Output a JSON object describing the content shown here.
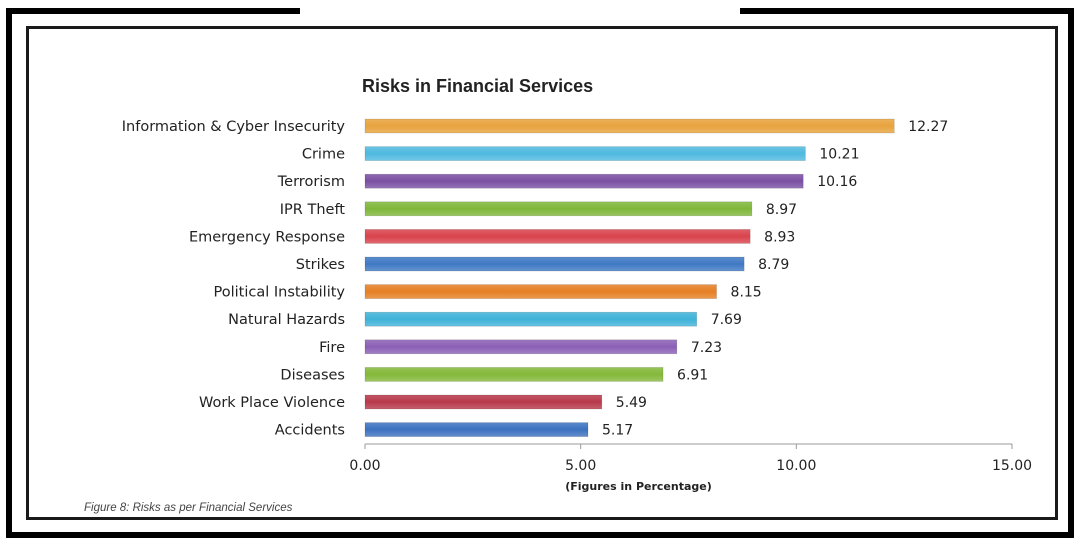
{
  "chart_data": {
    "type": "bar",
    "orientation": "horizontal",
    "title": "Risks in Financial Services",
    "xlabel": "(Figures in Percentage)",
    "ylabel": "",
    "xlim": [
      0,
      15
    ],
    "ticks": [
      "0.00",
      "5.00",
      "10.00",
      "15.00"
    ],
    "tick_values": [
      0,
      5,
      10,
      15
    ],
    "grid": false,
    "legend": "none",
    "categories": [
      "Information & Cyber Insecurity",
      "Crime",
      "Terrorism",
      "IPR Theft",
      "Emergency Response",
      "Strikes",
      "Political Instability",
      "Natural Hazards",
      "Fire",
      "Diseases",
      "Work Place Violence",
      "Accidents"
    ],
    "values": [
      12.27,
      10.21,
      10.16,
      8.97,
      8.93,
      8.79,
      8.15,
      7.69,
      7.23,
      6.91,
      5.49,
      5.17
    ],
    "value_labels": [
      "12.27",
      "10.21",
      "10.16",
      "8.97",
      "8.93",
      "8.79",
      "8.15",
      "7.69",
      "7.23",
      "6.91",
      "5.49",
      "5.17"
    ],
    "colors": [
      "#e8a33d",
      "#4fb9df",
      "#7a4fa3",
      "#7fb73a",
      "#d9434c",
      "#3f79c4",
      "#e57f24",
      "#3fb2d8",
      "#8a5fb5",
      "#84b83a",
      "#b7394a",
      "#3d72c0"
    ]
  },
  "caption": "Figure 8: Risks as per Financial Services"
}
